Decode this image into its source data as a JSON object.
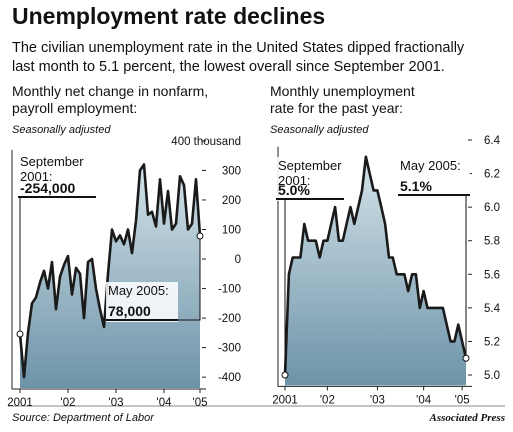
{
  "title": "Unemployment rate declines",
  "subtitle": [
    "The civilian unemployment rate in the United States dipped fractionally",
    "last month to 5.1 percent, the lowest overall since September 2001."
  ],
  "source": "Source: Department of Labor",
  "credit": "Associated Press",
  "chart_data": [
    {
      "type": "area",
      "title": [
        "Monthly net change in nonfarm,",
        "payroll employment:"
      ],
      "note": "Seasonally adjusted",
      "categories": [
        "2001",
        null,
        null,
        null,
        null,
        null,
        null,
        null,
        null,
        null,
        null,
        null,
        "'02",
        null,
        null,
        null,
        null,
        null,
        null,
        null,
        null,
        null,
        null,
        null,
        "'03",
        null,
        null,
        null,
        null,
        null,
        null,
        null,
        null,
        null,
        null,
        null,
        "'04",
        null,
        null,
        null,
        null,
        null,
        null,
        null,
        null,
        "'05"
      ],
      "values": [
        -254,
        -400,
        -250,
        -150,
        -130,
        -80,
        -40,
        -100,
        -10,
        -170,
        -60,
        -20,
        10,
        -120,
        -30,
        -50,
        -200,
        -10,
        0,
        -100,
        -170,
        -230,
        -50,
        100,
        60,
        80,
        50,
        100,
        20,
        130,
        300,
        320,
        150,
        160,
        110,
        270,
        120,
        230,
        100,
        120,
        280,
        250,
        100,
        120,
        270,
        78
      ],
      "value_labels": [
        "-254,000",
        null,
        null,
        null,
        null,
        null,
        null,
        null,
        null,
        null,
        null,
        null,
        null,
        null,
        null,
        null,
        null,
        null,
        null,
        null,
        null,
        null,
        null,
        null,
        null,
        null,
        null,
        null,
        null,
        null,
        null,
        null,
        null,
        null,
        null,
        null,
        null,
        null,
        null,
        null,
        null,
        null,
        null,
        null,
        null,
        "78,000"
      ],
      "annotations": [
        "September 2001:",
        "May 2005:"
      ],
      "color": "#1a1a1a",
      "fill": [
        "#d4e3ea",
        "#6d93a8"
      ],
      "ylim": [
        -430,
        420
      ],
      "yticks": [
        {
          "value": 400,
          "label": "400 thousand"
        },
        300,
        200,
        100,
        0,
        -100,
        -200,
        -300,
        -400
      ]
    },
    {
      "type": "area",
      "title": [
        "Monthly unemployment",
        "rate for the past year:"
      ],
      "note": "Seasonally adjusted",
      "categories": [
        "2001",
        null,
        null,
        null,
        null,
        null,
        null,
        null,
        null,
        null,
        null,
        "'02",
        null,
        null,
        null,
        null,
        null,
        null,
        null,
        null,
        null,
        null,
        null,
        null,
        "'03",
        null,
        null,
        null,
        null,
        null,
        null,
        null,
        null,
        null,
        null,
        null,
        "'04",
        null,
        null,
        null,
        null,
        null,
        null,
        null,
        null,
        null,
        "'05",
        null
      ],
      "values": [
        5.0,
        5.6,
        5.7,
        5.7,
        5.7,
        5.9,
        5.8,
        5.8,
        5.8,
        5.7,
        5.8,
        5.8,
        5.9,
        6.0,
        5.8,
        5.8,
        5.9,
        6.0,
        5.9,
        6.0,
        6.1,
        6.3,
        6.2,
        6.1,
        6.1,
        6.0,
        5.9,
        5.7,
        5.7,
        5.6,
        5.6,
        5.6,
        5.5,
        5.6,
        5.6,
        5.4,
        5.5,
        5.4,
        5.4,
        5.4,
        5.4,
        5.4,
        5.3,
        5.2,
        5.2,
        5.3,
        5.2,
        5.1
      ],
      "value_labels": [
        "5.0%",
        null,
        null,
        null,
        null,
        null,
        null,
        null,
        null,
        null,
        null,
        null,
        null,
        null,
        null,
        null,
        null,
        null,
        null,
        null,
        null,
        null,
        null,
        null,
        null,
        null,
        null,
        null,
        null,
        null,
        null,
        null,
        null,
        null,
        null,
        null,
        null,
        null,
        null,
        null,
        null,
        null,
        null,
        null,
        null,
        null,
        null,
        "5.1%"
      ],
      "annotations": [
        "September 2001:",
        "May 2005:"
      ],
      "color": "#1a1a1a",
      "fill": [
        "#d4e3ea",
        "#6d93a8"
      ],
      "ylim": [
        4.95,
        6.45
      ],
      "yticks": [
        {
          "value": 6.4,
          "label": "6.4"
        },
        6.2,
        {
          "value": 6.0,
          "label": "6.0"
        },
        5.8,
        5.6,
        5.4,
        5.2,
        {
          "value": 5.0,
          "label": "5.0"
        }
      ]
    }
  ]
}
